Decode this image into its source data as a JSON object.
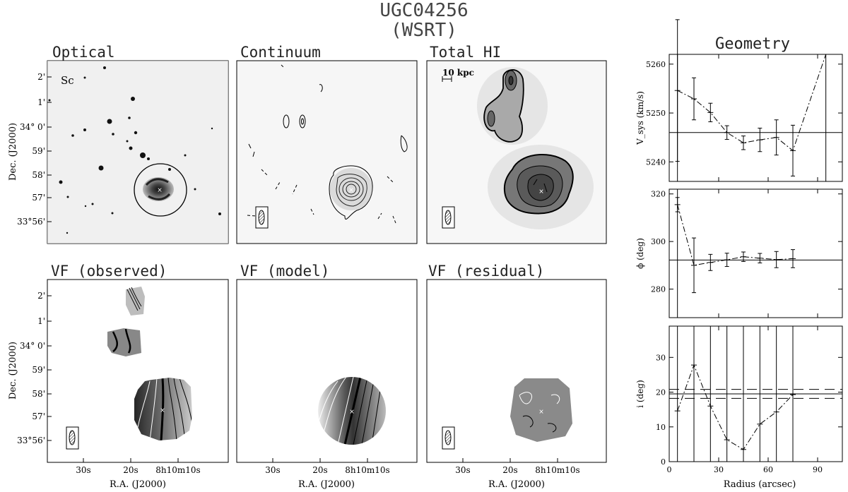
{
  "header": {
    "title": "UGC04256",
    "subtitle": "(WSRT)"
  },
  "panels": {
    "optical": {
      "title": "Optical",
      "tag": "Sc"
    },
    "continuum": {
      "title": "Continuum"
    },
    "totalhi": {
      "title": "Total HI",
      "scalebar": "10 kpc"
    },
    "vf_obs": {
      "title": "VF (observed)"
    },
    "vf_model": {
      "title": "VF (model)"
    },
    "vf_resid": {
      "title": "VF (residual)"
    }
  },
  "sky_axes": {
    "ylabel": "Dec. (J2000)",
    "xlabel": "R.A. (J2000)",
    "yticks": [
      "2'",
      "1'",
      "34° 0'",
      "59'",
      "58'",
      "57'",
      "33°56'"
    ],
    "xticks": [
      "30s",
      "20s",
      "8h10m10s"
    ]
  },
  "geometry": {
    "title": "Geometry",
    "xlabel": "Radius (arcsec)"
  },
  "chart_data": [
    {
      "type": "line",
      "title": "Geometry",
      "ylabel": "V_sys (km/s)",
      "xlim": [
        0,
        105
      ],
      "ylim": [
        5236,
        5262
      ],
      "yticks": [
        5240,
        5250,
        5260
      ],
      "x": [
        5,
        15,
        25,
        35,
        45,
        55,
        65,
        75
      ],
      "values": [
        5254.6,
        5252.9,
        5250.1,
        5246.0,
        5243.9,
        5244.5,
        5245.0,
        5242.3
      ],
      "errors": [
        14.5,
        4.3,
        1.9,
        1.4,
        1.4,
        2.4,
        3.6,
        5.2
      ],
      "reference": 5246.0,
      "last_point": {
        "x": 95,
        "y": 5262
      },
      "vlines": [
        5,
        95
      ]
    },
    {
      "type": "line",
      "ylabel": "ϕ (deg)",
      "xlim": [
        0,
        105
      ],
      "ylim": [
        268,
        322
      ],
      "yticks": [
        280,
        300,
        320
      ],
      "x": [
        5,
        15,
        25,
        35,
        45,
        55,
        65,
        75
      ],
      "values": [
        315.5,
        290.0,
        291.2,
        292.3,
        293.6,
        293.0,
        292.4,
        292.8
      ],
      "errors": [
        3,
        11.5,
        3.4,
        2.8,
        2.0,
        2.0,
        3.4,
        3.8
      ],
      "reference": 292.2,
      "vlines": [
        5
      ]
    },
    {
      "type": "line",
      "ylabel": "i (deg)",
      "xlabel": "Radius (arcsec)",
      "xlim": [
        0,
        105
      ],
      "ylim": [
        0,
        39
      ],
      "yticks": [
        0,
        10,
        20,
        30
      ],
      "xticks": [
        0,
        30,
        60,
        90
      ],
      "x": [
        5,
        15,
        25,
        35,
        45,
        55,
        65,
        75
      ],
      "values": [
        14.6,
        27.8,
        16.0,
        6.3,
        3.5,
        10.8,
        14.3,
        19.3
      ],
      "reference": 19.5,
      "reference_band": [
        18.2,
        20.8
      ],
      "vlines": [
        5,
        15,
        25,
        35,
        45,
        55,
        65,
        75
      ]
    }
  ],
  "colors": {
    "ink": "#000000",
    "panel_bg": "#ffffff",
    "galaxy_dark": "#333333",
    "field_grey": "#d8d8d8"
  }
}
